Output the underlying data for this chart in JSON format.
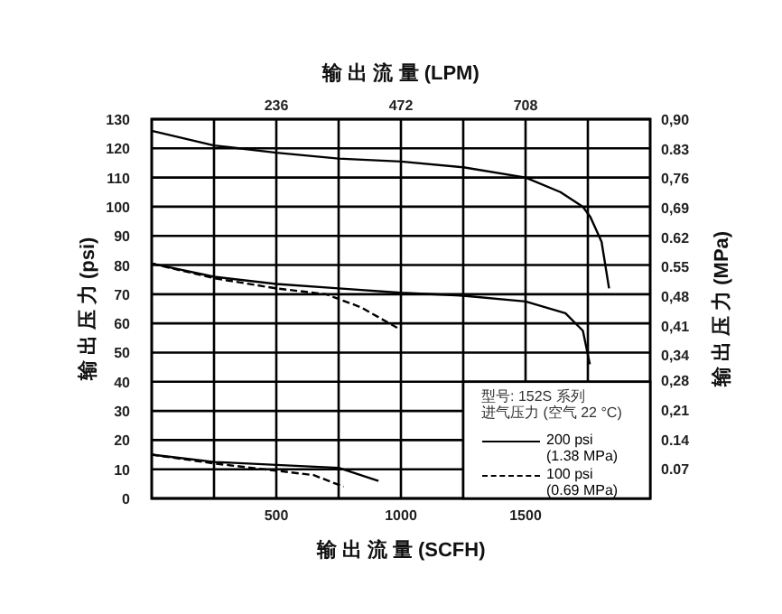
{
  "chart_data": {
    "type": "line",
    "x2label": "输 出 流 量 (LPM)",
    "xlabel": "输 出 流 量 (SCFH)",
    "ylabel": "输 出 压 力 (psi)",
    "y2label": "输 出 压 力 (MPa)",
    "legend_title": "型号: 152S 系列",
    "annotations": [
      "进气压力 (空气 22 °C)"
    ],
    "xlim": [
      0,
      2000
    ],
    "ylim": [
      0,
      130
    ],
    "x2lim": [
      0,
      944
    ],
    "y2lim": [
      0,
      0.9
    ],
    "xticks": [
      {
        "value": 250,
        "label": null
      },
      500,
      {
        "value": 750,
        "label": null
      },
      1000,
      {
        "value": 1250,
        "label": null
      },
      1500,
      {
        "value": 1750,
        "label": null
      }
    ],
    "x2ticks": [
      236,
      472,
      708
    ],
    "yticks": [
      0,
      10,
      20,
      30,
      40,
      50,
      60,
      70,
      80,
      90,
      100,
      110,
      120,
      130
    ],
    "y2ticks": [
      0.07,
      0.14,
      {
        "value": 0.21,
        "label": "0,21"
      },
      {
        "value": 0.28,
        "label": "0,28"
      },
      {
        "value": 0.34,
        "label": "0,34"
      },
      {
        "value": 0.41,
        "label": "0,41"
      },
      {
        "value": 0.48,
        "label": "0,48"
      },
      0.55,
      0.62,
      {
        "value": 0.69,
        "label": "0,69"
      },
      {
        "value": 0.76,
        "label": "0,76"
      },
      0.83,
      {
        "value": 0.9,
        "label": "0,90"
      }
    ],
    "grid": true,
    "legend": "bottom right",
    "series": [
      {
        "name": "200 psi (1.38 MPa)",
        "color": "#000000",
        "line_style": "solid",
        "x": [
          0,
          250,
          500,
          750,
          1000,
          1250,
          1500,
          1640,
          1730,
          1760,
          1805,
          1835
        ],
        "values": [
          126,
          121,
          118.5,
          116.5,
          115.5,
          113.5,
          110,
          105,
          100,
          96.5,
          88,
          72
        ]
      },
      {
        "color": "#000000",
        "line_style": "solid",
        "x": [
          0,
          250,
          500,
          750,
          1000,
          1250,
          1500,
          1660,
          1730,
          1758
        ],
        "values": [
          80.5,
          76,
          73.5,
          72,
          70.5,
          69.5,
          67.5,
          63.5,
          57.5,
          46
        ]
      },
      {
        "color": "#000000",
        "line_style": "solid",
        "x": [
          0,
          250,
          500,
          750,
          910
        ],
        "values": [
          15,
          12.5,
          11.5,
          10.5,
          6
        ]
      },
      {
        "name": "100 psi (0.69 MPa)",
        "color": "#000000",
        "line_style": "dashed",
        "x": [
          0,
          250,
          500,
          700,
          840,
          985
        ],
        "values": [
          80.5,
          75.5,
          72,
          70,
          65.5,
          58.5
        ]
      },
      {
        "color": "#000000",
        "line_style": "dashed",
        "x": [
          0,
          250,
          500,
          650,
          770
        ],
        "values": [
          15,
          12,
          9.5,
          8,
          4
        ]
      }
    ]
  }
}
